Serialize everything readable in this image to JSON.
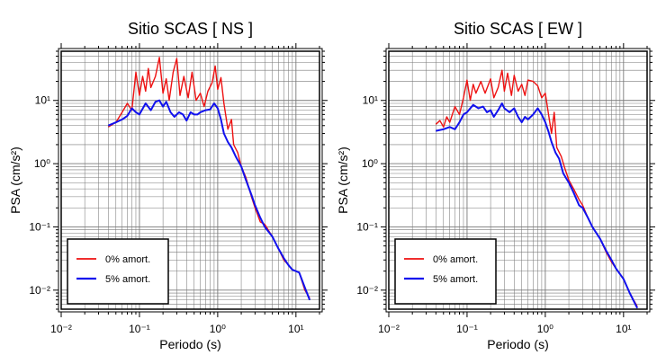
{
  "chart_data": [
    {
      "type": "line",
      "title": "Sitio SCAS [ NS ]",
      "xlabel": "Periodo (s)",
      "ylabel": "PSA (cm/s²)",
      "x_scale": "log",
      "y_scale": "log",
      "xlim": [
        0.01,
        20
      ],
      "ylim": [
        0.005,
        60
      ],
      "grid": true,
      "legend_position": "bottom-left",
      "x_ticks": [
        0.01,
        0.1,
        1,
        10
      ],
      "y_ticks": [
        0.01,
        0.1,
        1,
        10
      ],
      "series": [
        {
          "name": "0% amort.",
          "color": "#ee1111",
          "points": [
            [
              0.04,
              3.8
            ],
            [
              0.05,
              4.5
            ],
            [
              0.06,
              6.5
            ],
            [
              0.07,
              9
            ],
            [
              0.08,
              7
            ],
            [
              0.09,
              28
            ],
            [
              0.1,
              12
            ],
            [
              0.11,
              24
            ],
            [
              0.12,
              14
            ],
            [
              0.13,
              32
            ],
            [
              0.14,
              16
            ],
            [
              0.16,
              24
            ],
            [
              0.18,
              48
            ],
            [
              0.2,
              13
            ],
            [
              0.22,
              22
            ],
            [
              0.24,
              10
            ],
            [
              0.27,
              28
            ],
            [
              0.3,
              46
            ],
            [
              0.33,
              12
            ],
            [
              0.37,
              24
            ],
            [
              0.42,
              11
            ],
            [
              0.47,
              28
            ],
            [
              0.53,
              10
            ],
            [
              0.6,
              13
            ],
            [
              0.67,
              8
            ],
            [
              0.75,
              14
            ],
            [
              0.85,
              19
            ],
            [
              0.93,
              35
            ],
            [
              1.0,
              15
            ],
            [
              1.1,
              23
            ],
            [
              1.2,
              9
            ],
            [
              1.35,
              3.5
            ],
            [
              1.5,
              5
            ],
            [
              1.6,
              2.0
            ],
            [
              1.8,
              1.5
            ],
            [
              2.0,
              0.9
            ],
            [
              2.3,
              0.6
            ],
            [
              2.7,
              0.3
            ],
            [
              3.0,
              0.2
            ],
            [
              3.5,
              0.12
            ],
            [
              4.0,
              0.11
            ],
            [
              5.0,
              0.07
            ],
            [
              6.0,
              0.045
            ],
            [
              7.0,
              0.03
            ],
            [
              8.0,
              0.025
            ],
            [
              9.0,
              0.021
            ],
            [
              11.0,
              0.019
            ],
            [
              13.0,
              0.01
            ],
            [
              15.0,
              0.0075
            ]
          ]
        },
        {
          "name": "5% amort.",
          "color": "#1111ee",
          "points": [
            [
              0.04,
              4.0
            ],
            [
              0.05,
              4.5
            ],
            [
              0.06,
              5.0
            ],
            [
              0.07,
              5.7
            ],
            [
              0.08,
              7.5
            ],
            [
              0.09,
              6.5
            ],
            [
              0.1,
              6.0
            ],
            [
              0.12,
              9.0
            ],
            [
              0.14,
              7.0
            ],
            [
              0.16,
              9.5
            ],
            [
              0.18,
              10.0
            ],
            [
              0.2,
              8.0
            ],
            [
              0.22,
              9.5
            ],
            [
              0.25,
              6.5
            ],
            [
              0.28,
              5.5
            ],
            [
              0.32,
              6.5
            ],
            [
              0.36,
              6.0
            ],
            [
              0.4,
              4.8
            ],
            [
              0.45,
              6.5
            ],
            [
              0.5,
              6.0
            ],
            [
              0.55,
              6.0
            ],
            [
              0.6,
              6.5
            ],
            [
              0.7,
              7.0
            ],
            [
              0.8,
              7.2
            ],
            [
              0.9,
              9.0
            ],
            [
              1.0,
              7.5
            ],
            [
              1.1,
              5.0
            ],
            [
              1.2,
              3.0
            ],
            [
              1.35,
              2.2
            ],
            [
              1.5,
              1.8
            ],
            [
              1.7,
              1.3
            ],
            [
              2.0,
              0.9
            ],
            [
              2.3,
              0.55
            ],
            [
              2.7,
              0.32
            ],
            [
              3.0,
              0.22
            ],
            [
              3.5,
              0.14
            ],
            [
              4.0,
              0.1
            ],
            [
              5.0,
              0.07
            ],
            [
              6.0,
              0.045
            ],
            [
              7.0,
              0.032
            ],
            [
              8.0,
              0.025
            ],
            [
              9.0,
              0.021
            ],
            [
              11.0,
              0.019
            ],
            [
              13.0,
              0.011
            ],
            [
              15.0,
              0.007
            ]
          ]
        }
      ]
    },
    {
      "type": "line",
      "title": "Sitio SCAS [ EW ]",
      "xlabel": "Periodo (s)",
      "ylabel": "PSA (cm/s²)",
      "x_scale": "log",
      "y_scale": "log",
      "xlim": [
        0.01,
        20
      ],
      "ylim": [
        0.005,
        60
      ],
      "grid": true,
      "legend_position": "bottom-left",
      "x_ticks": [
        0.01,
        0.1,
        1,
        10
      ],
      "y_ticks": [
        0.01,
        0.1,
        1,
        10
      ],
      "series": [
        {
          "name": "0% amort.",
          "color": "#ee1111",
          "points": [
            [
              0.04,
              4.2
            ],
            [
              0.045,
              4.8
            ],
            [
              0.05,
              3.8
            ],
            [
              0.055,
              5.5
            ],
            [
              0.06,
              4.5
            ],
            [
              0.07,
              8.0
            ],
            [
              0.08,
              6.0
            ],
            [
              0.09,
              11.0
            ],
            [
              0.1,
              21.0
            ],
            [
              0.11,
              10.0
            ],
            [
              0.12,
              18.0
            ],
            [
              0.13,
              13.0
            ],
            [
              0.15,
              20.0
            ],
            [
              0.17,
              13.0
            ],
            [
              0.2,
              22.0
            ],
            [
              0.22,
              11.0
            ],
            [
              0.25,
              16.0
            ],
            [
              0.28,
              30.0
            ],
            [
              0.3,
              14.0
            ],
            [
              0.33,
              27.0
            ],
            [
              0.37,
              12.0
            ],
            [
              0.4,
              25.0
            ],
            [
              0.45,
              14.0
            ],
            [
              0.5,
              18.0
            ],
            [
              0.55,
              12.0
            ],
            [
              0.6,
              21.0
            ],
            [
              0.7,
              20.0
            ],
            [
              0.8,
              17.0
            ],
            [
              0.9,
              11.0
            ],
            [
              1.0,
              13.0
            ],
            [
              1.1,
              6.0
            ],
            [
              1.2,
              3.0
            ],
            [
              1.3,
              6.5
            ],
            [
              1.4,
              1.8
            ],
            [
              1.6,
              1.3
            ],
            [
              1.8,
              0.8
            ],
            [
              2.0,
              0.55
            ],
            [
              2.3,
              0.4
            ],
            [
              2.7,
              0.27
            ],
            [
              3.0,
              0.22
            ],
            [
              3.5,
              0.14
            ],
            [
              4.0,
              0.1
            ],
            [
              5.0,
              0.065
            ],
            [
              6.0,
              0.04
            ],
            [
              7.0,
              0.028
            ],
            [
              8.0,
              0.022
            ],
            [
              10.0,
              0.015
            ],
            [
              12.0,
              0.009
            ],
            [
              15.0,
              0.0055
            ]
          ]
        },
        {
          "name": "5% amort.",
          "color": "#1111ee",
          "points": [
            [
              0.04,
              3.3
            ],
            [
              0.05,
              3.5
            ],
            [
              0.06,
              3.8
            ],
            [
              0.07,
              3.5
            ],
            [
              0.08,
              4.5
            ],
            [
              0.09,
              6.0
            ],
            [
              0.1,
              6.5
            ],
            [
              0.12,
              8.5
            ],
            [
              0.14,
              7.5
            ],
            [
              0.16,
              8.0
            ],
            [
              0.18,
              6.5
            ],
            [
              0.2,
              7.0
            ],
            [
              0.22,
              5.5
            ],
            [
              0.25,
              7.0
            ],
            [
              0.28,
              9.0
            ],
            [
              0.3,
              7.5
            ],
            [
              0.35,
              6.5
            ],
            [
              0.4,
              7.5
            ],
            [
              0.45,
              5.5
            ],
            [
              0.5,
              4.5
            ],
            [
              0.55,
              5.5
            ],
            [
              0.6,
              5.0
            ],
            [
              0.7,
              6.0
            ],
            [
              0.8,
              7.5
            ],
            [
              0.9,
              6.0
            ],
            [
              1.0,
              4.5
            ],
            [
              1.1,
              3.2
            ],
            [
              1.2,
              2.2
            ],
            [
              1.35,
              1.5
            ],
            [
              1.5,
              1.2
            ],
            [
              1.7,
              0.7
            ],
            [
              2.0,
              0.5
            ],
            [
              2.3,
              0.35
            ],
            [
              2.7,
              0.22
            ],
            [
              3.0,
              0.2
            ],
            [
              3.5,
              0.14
            ],
            [
              4.0,
              0.1
            ],
            [
              5.0,
              0.065
            ],
            [
              6.0,
              0.042
            ],
            [
              7.0,
              0.03
            ],
            [
              8.0,
              0.022
            ],
            [
              10.0,
              0.015
            ],
            [
              12.0,
              0.009
            ],
            [
              15.0,
              0.0052
            ]
          ]
        }
      ]
    }
  ]
}
